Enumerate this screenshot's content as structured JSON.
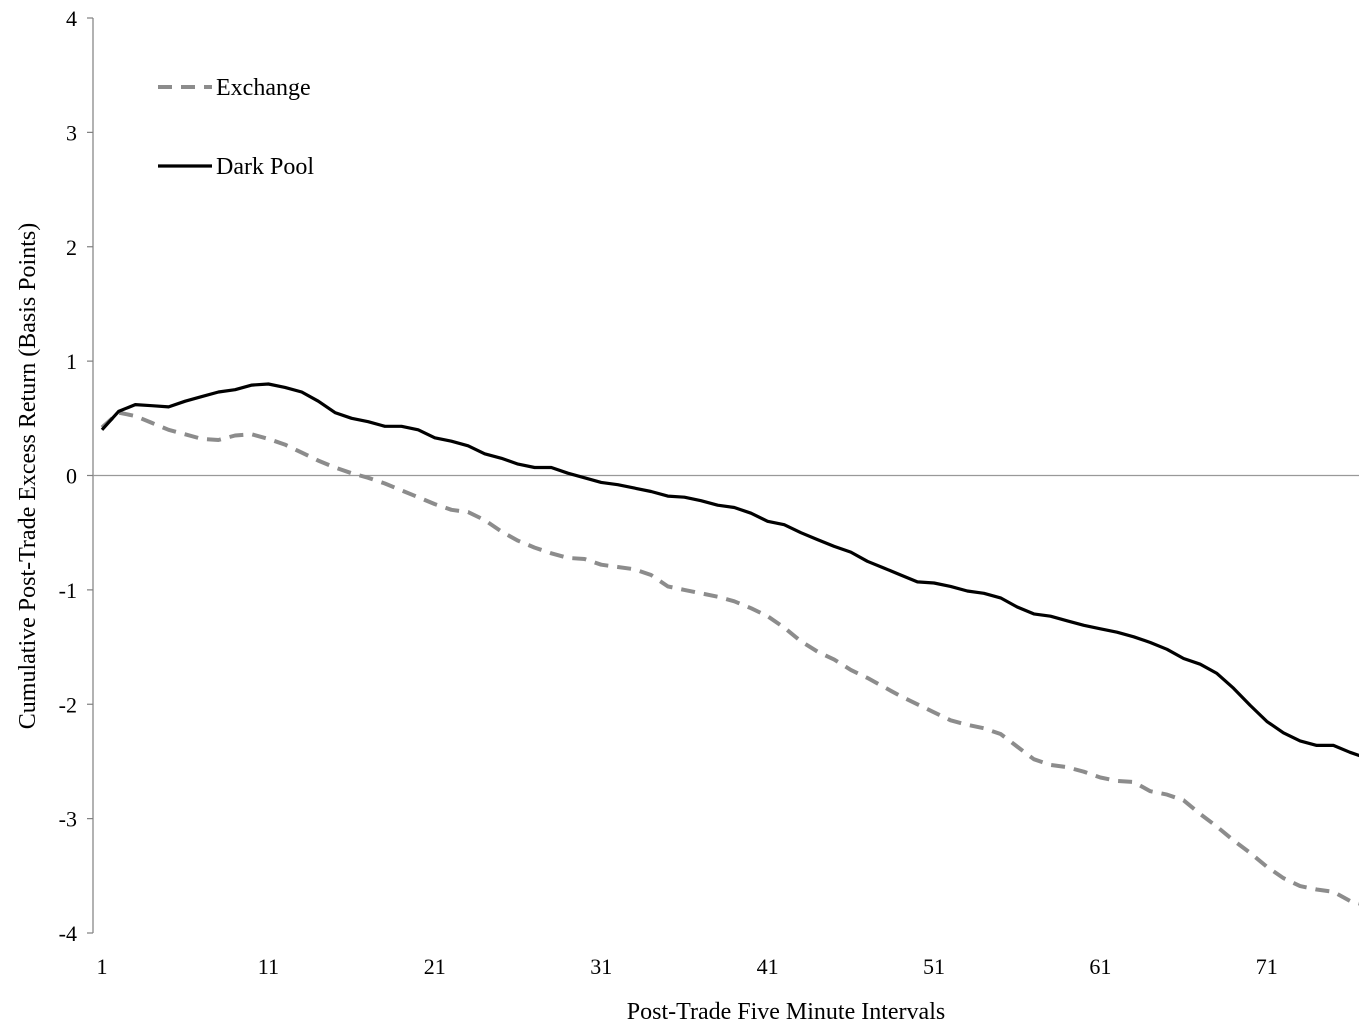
{
  "chart_data": {
    "type": "line",
    "title": "",
    "xlabel": "Post-Trade Five Minute Intervals",
    "ylabel": "Cumulative Post-Trade Excess Return (Basis Points)",
    "xlim": [
      1,
      78
    ],
    "ylim": [
      -4,
      4
    ],
    "x_ticks": [
      1,
      11,
      21,
      31,
      41,
      51,
      61,
      71
    ],
    "y_ticks": [
      4,
      3,
      2,
      1,
      0,
      -1,
      -2,
      -3,
      -4
    ],
    "grid": false,
    "legend_position": "top-left",
    "colors": {
      "exchange": "#8c8c8c",
      "dark_pool": "#000000",
      "zero_line": "#999999",
      "axis": "#7f7f7f"
    },
    "series": [
      {
        "name": "Exchange",
        "style": "dashed",
        "values": [
          0.42,
          0.55,
          0.52,
          0.46,
          0.4,
          0.36,
          0.32,
          0.31,
          0.35,
          0.36,
          0.32,
          0.27,
          0.2,
          0.13,
          0.07,
          0.02,
          -0.02,
          -0.07,
          -0.13,
          -0.19,
          -0.25,
          -0.3,
          -0.32,
          -0.39,
          -0.49,
          -0.57,
          -0.63,
          -0.68,
          -0.72,
          -0.73,
          -0.78,
          -0.8,
          -0.82,
          -0.87,
          -0.97,
          -1.0,
          -1.03,
          -1.06,
          -1.1,
          -1.16,
          -1.23,
          -1.33,
          -1.45,
          -1.54,
          -1.61,
          -1.7,
          -1.77,
          -1.85,
          -1.93,
          -2.0,
          -2.07,
          -2.14,
          -2.18,
          -2.21,
          -2.26,
          -2.37,
          -2.48,
          -2.53,
          -2.55,
          -2.59,
          -2.64,
          -2.67,
          -2.68,
          -2.76,
          -2.79,
          -2.84,
          -2.96,
          -3.07,
          -3.19,
          -3.3,
          -3.42,
          -3.52,
          -3.59,
          -3.62,
          -3.64,
          -3.72,
          -3.76
        ]
      },
      {
        "name": "Dark Pool",
        "style": "solid",
        "values": [
          0.4,
          0.56,
          0.62,
          0.61,
          0.6,
          0.65,
          0.69,
          0.73,
          0.75,
          0.79,
          0.8,
          0.77,
          0.73,
          0.65,
          0.55,
          0.5,
          0.47,
          0.43,
          0.43,
          0.4,
          0.33,
          0.3,
          0.26,
          0.19,
          0.15,
          0.1,
          0.07,
          0.07,
          0.02,
          -0.02,
          -0.06,
          -0.08,
          -0.11,
          -0.14,
          -0.18,
          -0.19,
          -0.22,
          -0.26,
          -0.28,
          -0.33,
          -0.4,
          -0.43,
          -0.5,
          -0.56,
          -0.62,
          -0.67,
          -0.75,
          -0.81,
          -0.87,
          -0.93,
          -0.94,
          -0.97,
          -1.01,
          -1.03,
          -1.07,
          -1.15,
          -1.21,
          -1.23,
          -1.27,
          -1.31,
          -1.34,
          -1.37,
          -1.41,
          -1.46,
          -1.52,
          -1.6,
          -1.65,
          -1.73,
          -1.86,
          -2.01,
          -2.15,
          -2.25,
          -2.32,
          -2.36,
          -2.36,
          -2.42,
          -2.47
        ]
      }
    ]
  }
}
